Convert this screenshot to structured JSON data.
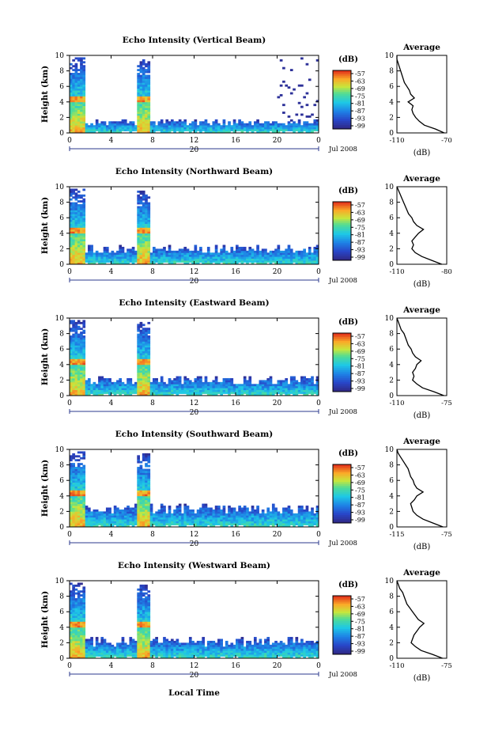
{
  "figure": {
    "xlabel": "Local Time",
    "date_label": "Jul 2008",
    "day_label": "20",
    "ylabel": "Height (km)",
    "colorbar_unit": "(dB)",
    "average_title": "Average",
    "average_xlabel": "(dB)"
  },
  "chart_data": [
    {
      "type": "heatmap",
      "title": "Echo Intensity (Vertical Beam)",
      "xlabel": "Local Time",
      "ylabel": "Height (km)",
      "x_ticks": [
        "0",
        "4",
        "8",
        "12",
        "16",
        "20",
        "0"
      ],
      "y_ticks": [
        "0",
        "2",
        "4",
        "6",
        "8",
        "10"
      ],
      "xlim": [
        0,
        24
      ],
      "ylim": [
        0,
        10
      ],
      "colorbar": {
        "label": "(dB)",
        "ticks": [
          "-57",
          "-63",
          "-69",
          "-75",
          "-81",
          "-87",
          "-93",
          "-99"
        ]
      },
      "features": [
        {
          "x_start": 0.0,
          "x_end": 1.4,
          "top_km": 9.8,
          "kind": "rain_column"
        },
        {
          "x_start": 6.5,
          "x_end": 7.8,
          "top_km": 9.5,
          "kind": "rain_column"
        },
        {
          "x_start": 1.4,
          "x_end": 24.0,
          "top_km": 1.8,
          "kind": "boundary_layer"
        },
        {
          "x_start": 20.0,
          "x_end": 24.0,
          "top_km": 9.8,
          "kind": "upper_patches"
        }
      ],
      "average": {
        "title": "Average",
        "xlabel": "(dB)",
        "x_ticks": [
          "-110",
          "-70"
        ],
        "xlim": [
          -110,
          -70
        ],
        "y_ticks": [
          "0",
          "2",
          "4",
          "6",
          "8",
          "10"
        ],
        "height_km": [
          0,
          0.5,
          1,
          1.5,
          2,
          2.5,
          3,
          3.5,
          4,
          4.5,
          5,
          5.5,
          6,
          6.5,
          7,
          7.5,
          8,
          8.5,
          9,
          9.5,
          10
        ],
        "values_db": [
          -72,
          -79,
          -88,
          -92,
          -95,
          -97,
          -98,
          -97,
          -101,
          -96,
          -99,
          -100,
          -102,
          -104,
          -105,
          -106,
          -107,
          -108,
          -109,
          -110,
          -110
        ]
      }
    },
    {
      "type": "heatmap",
      "title": "Echo Intensity (Northward Beam)",
      "xlabel": "Local Time",
      "ylabel": "Height (km)",
      "x_ticks": [
        "0",
        "4",
        "8",
        "12",
        "16",
        "20",
        "0"
      ],
      "y_ticks": [
        "0",
        "2",
        "4",
        "6",
        "8",
        "10"
      ],
      "xlim": [
        0,
        24
      ],
      "ylim": [
        0,
        10
      ],
      "colorbar": {
        "label": "(dB)",
        "ticks": [
          "-57",
          "-63",
          "-69",
          "-75",
          "-81",
          "-87",
          "-93",
          "-99"
        ]
      },
      "features": [
        {
          "x_start": 0.0,
          "x_end": 1.4,
          "top_km": 9.8,
          "kind": "rain_column"
        },
        {
          "x_start": 6.5,
          "x_end": 7.8,
          "top_km": 9.5,
          "kind": "rain_column"
        },
        {
          "x_start": 1.4,
          "x_end": 24.0,
          "top_km": 2.5,
          "kind": "boundary_layer"
        }
      ],
      "average": {
        "title": "Average",
        "xlabel": "(dB)",
        "x_ticks": [
          "-110",
          "-80"
        ],
        "xlim": [
          -110,
          -80
        ],
        "y_ticks": [
          "0",
          "2",
          "4",
          "6",
          "8",
          "10"
        ],
        "height_km": [
          0,
          0.5,
          1,
          1.5,
          2,
          2.5,
          3,
          3.5,
          4,
          4.5,
          5,
          5.5,
          6,
          6.5,
          7,
          7.5,
          8,
          8.5,
          9,
          9.5,
          10
        ],
        "values_db": [
          -83,
          -89,
          -95,
          -99,
          -101,
          -100,
          -101,
          -99,
          -97,
          -94,
          -98,
          -100,
          -101,
          -103,
          -104,
          -105,
          -106,
          -107,
          -108,
          -109,
          -110
        ]
      }
    },
    {
      "type": "heatmap",
      "title": "Echo Intensity (Eastward Beam)",
      "xlabel": "Local Time",
      "ylabel": "Height (km)",
      "x_ticks": [
        "0",
        "4",
        "8",
        "12",
        "16",
        "20",
        "0"
      ],
      "y_ticks": [
        "0",
        "2",
        "4",
        "6",
        "8",
        "10"
      ],
      "xlim": [
        0,
        24
      ],
      "ylim": [
        0,
        10
      ],
      "colorbar": {
        "label": "(dB)",
        "ticks": [
          "-57",
          "-63",
          "-69",
          "-75",
          "-81",
          "-87",
          "-93",
          "-99"
        ]
      },
      "features": [
        {
          "x_start": 0.0,
          "x_end": 1.4,
          "top_km": 9.8,
          "kind": "rain_column"
        },
        {
          "x_start": 6.5,
          "x_end": 7.8,
          "top_km": 9.5,
          "kind": "rain_column"
        },
        {
          "x_start": 1.4,
          "x_end": 24.0,
          "top_km": 2.6,
          "kind": "boundary_layer"
        }
      ],
      "average": {
        "title": "Average",
        "xlabel": "(dB)",
        "x_ticks": [
          "-110",
          "-75"
        ],
        "xlim": [
          -110,
          -75
        ],
        "y_ticks": [
          "0",
          "2",
          "4",
          "6",
          "8",
          "10"
        ],
        "height_km": [
          0,
          0.5,
          1,
          1.5,
          2,
          2.5,
          3,
          3.5,
          4,
          4.5,
          5,
          5.5,
          6,
          6.5,
          7,
          7.5,
          8,
          8.5,
          9,
          9.5,
          10
        ],
        "values_db": [
          -77,
          -84,
          -92,
          -96,
          -99,
          -98,
          -99,
          -97,
          -96,
          -93,
          -97,
          -99,
          -100,
          -102,
          -103,
          -104,
          -105,
          -107,
          -108,
          -109,
          -110
        ]
      }
    },
    {
      "type": "heatmap",
      "title": "Echo Intensity (Southward Beam)",
      "xlabel": "Local Time",
      "ylabel": "Height (km)",
      "x_ticks": [
        "0",
        "4",
        "8",
        "12",
        "16",
        "20",
        "0"
      ],
      "y_ticks": [
        "0",
        "2",
        "4",
        "6",
        "8",
        "10"
      ],
      "xlim": [
        0,
        24
      ],
      "ylim": [
        0,
        10
      ],
      "colorbar": {
        "label": "(dB)",
        "ticks": [
          "-57",
          "-63",
          "-69",
          "-75",
          "-81",
          "-87",
          "-93",
          "-99"
        ]
      },
      "features": [
        {
          "x_start": 0.0,
          "x_end": 1.4,
          "top_km": 9.8,
          "kind": "rain_column"
        },
        {
          "x_start": 6.5,
          "x_end": 7.8,
          "top_km": 9.5,
          "kind": "rain_column"
        },
        {
          "x_start": 1.4,
          "x_end": 24.0,
          "top_km": 3.0,
          "kind": "boundary_layer"
        }
      ],
      "average": {
        "title": "Average",
        "xlabel": "(dB)",
        "x_ticks": [
          "-115",
          "-75"
        ],
        "xlim": [
          -115,
          -75
        ],
        "y_ticks": [
          "0",
          "2",
          "4",
          "6",
          "8",
          "10"
        ],
        "height_km": [
          0,
          0.5,
          1,
          1.5,
          2,
          2.5,
          3,
          3.5,
          4,
          4.5,
          5,
          5.5,
          6,
          6.5,
          7,
          7.5,
          8,
          8.5,
          9,
          9.5,
          10
        ],
        "values_db": [
          -78,
          -86,
          -94,
          -99,
          -102,
          -103,
          -104,
          -101,
          -99,
          -94,
          -99,
          -101,
          -102,
          -104,
          -105,
          -106,
          -108,
          -110,
          -112,
          -114,
          -115
        ]
      }
    },
    {
      "type": "heatmap",
      "title": "Echo Intensity (Westward Beam)",
      "xlabel": "Local Time",
      "ylabel": "Height (km)",
      "x_ticks": [
        "0",
        "4",
        "8",
        "12",
        "16",
        "20",
        "0"
      ],
      "y_ticks": [
        "0",
        "2",
        "4",
        "6",
        "8",
        "10"
      ],
      "xlim": [
        0,
        24
      ],
      "ylim": [
        0,
        10
      ],
      "colorbar": {
        "label": "(dB)",
        "ticks": [
          "-57",
          "-63",
          "-69",
          "-75",
          "-81",
          "-87",
          "-93",
          "-99"
        ]
      },
      "features": [
        {
          "x_start": 0.0,
          "x_end": 1.4,
          "top_km": 9.8,
          "kind": "rain_column"
        },
        {
          "x_start": 6.5,
          "x_end": 7.8,
          "top_km": 9.5,
          "kind": "rain_column"
        },
        {
          "x_start": 1.4,
          "x_end": 24.0,
          "top_km": 2.8,
          "kind": "boundary_layer"
        }
      ],
      "average": {
        "title": "Average",
        "xlabel": "(dB)",
        "x_ticks": [
          "-110",
          "-75"
        ],
        "xlim": [
          -110,
          -75
        ],
        "y_ticks": [
          "0",
          "2",
          "4",
          "6",
          "8",
          "10"
        ],
        "height_km": [
          0,
          0.5,
          1,
          1.5,
          2,
          2.5,
          3,
          3.5,
          4,
          4.5,
          5,
          5.5,
          6,
          6.5,
          7,
          7.5,
          8,
          8.5,
          9,
          9.5,
          10
        ],
        "values_db": [
          -78,
          -85,
          -93,
          -97,
          -100,
          -99,
          -98,
          -96,
          -94,
          -91,
          -95,
          -97,
          -99,
          -101,
          -103,
          -104,
          -105,
          -106,
          -108,
          -109,
          -110
        ]
      }
    }
  ]
}
